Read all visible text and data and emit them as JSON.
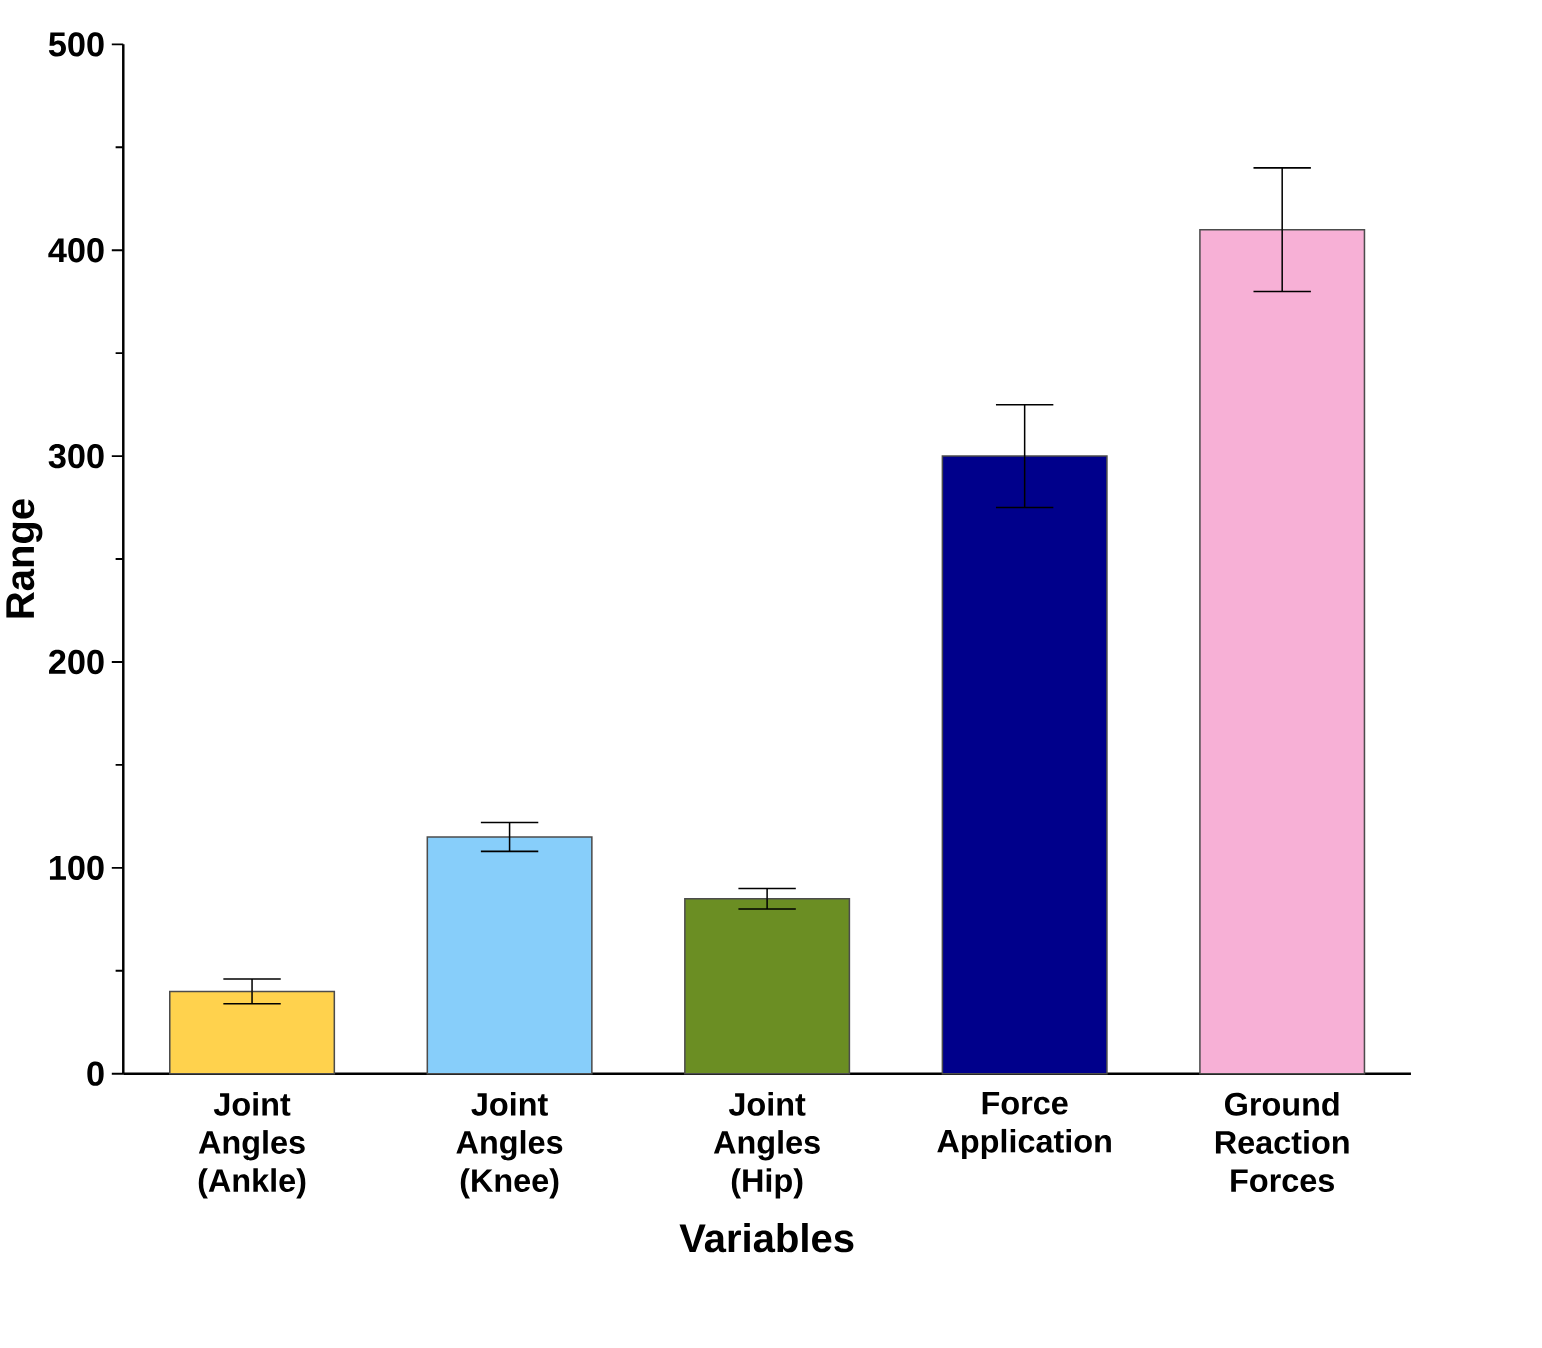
{
  "chart_data": {
    "type": "bar",
    "xlabel": "Variables",
    "ylabel": "Range",
    "categories": [
      "Joint Angles (Ankle)",
      "Joint Angles (Knee)",
      "Joint Angles (Hip)",
      "Force Application",
      "Ground Reaction Forces"
    ],
    "values": [
      40,
      115,
      85,
      300,
      410
    ],
    "errors": [
      6,
      7,
      5,
      25,
      30
    ],
    "colors": [
      "#ffd24d",
      "#87cefa",
      "#6b8e23",
      "#00008b",
      "#f7b0d6"
    ],
    "ylim": [
      0,
      500
    ],
    "yticks": [
      0,
      100,
      200,
      300,
      400,
      500
    ]
  }
}
